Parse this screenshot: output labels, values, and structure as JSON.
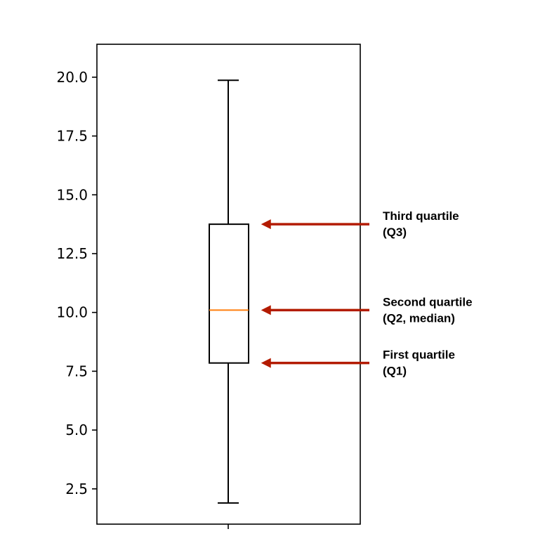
{
  "chart_data": {
    "type": "box",
    "title": "",
    "xlabel": "",
    "ylabel": "",
    "ylim": [
      1.0,
      21.4
    ],
    "yticks": [
      {
        "value": 2.5,
        "label": "2.5"
      },
      {
        "value": 5.0,
        "label": "5.0"
      },
      {
        "value": 7.5,
        "label": "7.5"
      },
      {
        "value": 10.0,
        "label": "10.0"
      },
      {
        "value": 12.5,
        "label": "12.5"
      },
      {
        "value": 15.0,
        "label": "15.0"
      },
      {
        "value": 17.5,
        "label": "17.5"
      },
      {
        "value": 20.0,
        "label": "20.0"
      }
    ],
    "box": {
      "whisker_low": 1.9,
      "q1": 7.85,
      "median": 10.1,
      "q3": 13.75,
      "whisker_high": 19.87
    },
    "annotations": [
      {
        "target": "q3",
        "lines": [
          "Third quartile",
          "(Q3)"
        ]
      },
      {
        "target": "median",
        "lines": [
          "Second quartile",
          "(Q2, median)"
        ]
      },
      {
        "target": "q1",
        "lines": [
          "First quartile",
          "(Q1)"
        ]
      }
    ],
    "colors": {
      "box": "#000000",
      "median": "#ff7f0e",
      "arrow": "#b31b00",
      "axes": "#000000"
    },
    "grid": false,
    "legend": "none"
  }
}
